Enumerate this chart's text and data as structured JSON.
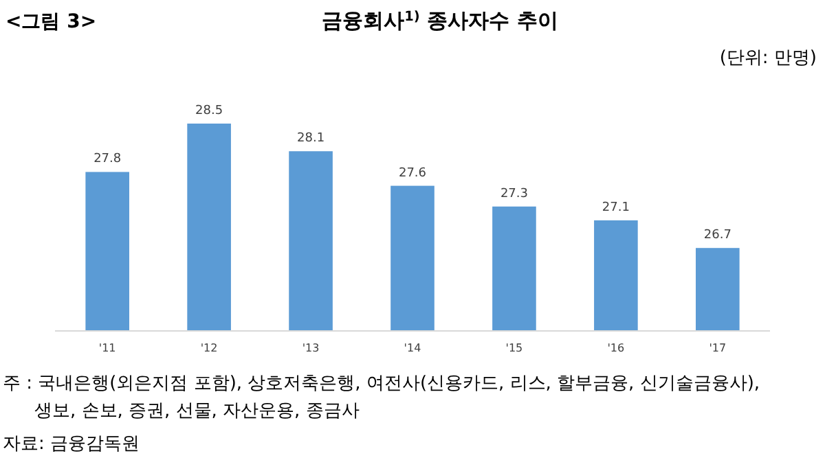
{
  "chart_data": {
    "type": "bar",
    "title": "금융회사$^{1)}$ 종사자수 추이",
    "subtitle": "(단위: 만명)",
    "categories": [
      "'11",
      "'12",
      "'13",
      "'14",
      "'15",
      "'16",
      "'17"
    ],
    "values": [
      27.8,
      28.5,
      28.1,
      27.6,
      27.3,
      27.1,
      26.7
    ],
    "color": "#5b9bd5",
    "ylim": [
      25.5,
      28.5
    ],
    "data_labels": true,
    "tick_labels": "x",
    "annotations": [
      "<그림 3>",
      "주 : 국내은행(외은지점 포함), 상호저축은행, 여전사(신용카드, 리스, 할부금융, 신기술금융사),\n생보, 손보, 증권, 선물, 자산운용, 종금사",
      "자료: 금융감독원"
    ]
  }
}
